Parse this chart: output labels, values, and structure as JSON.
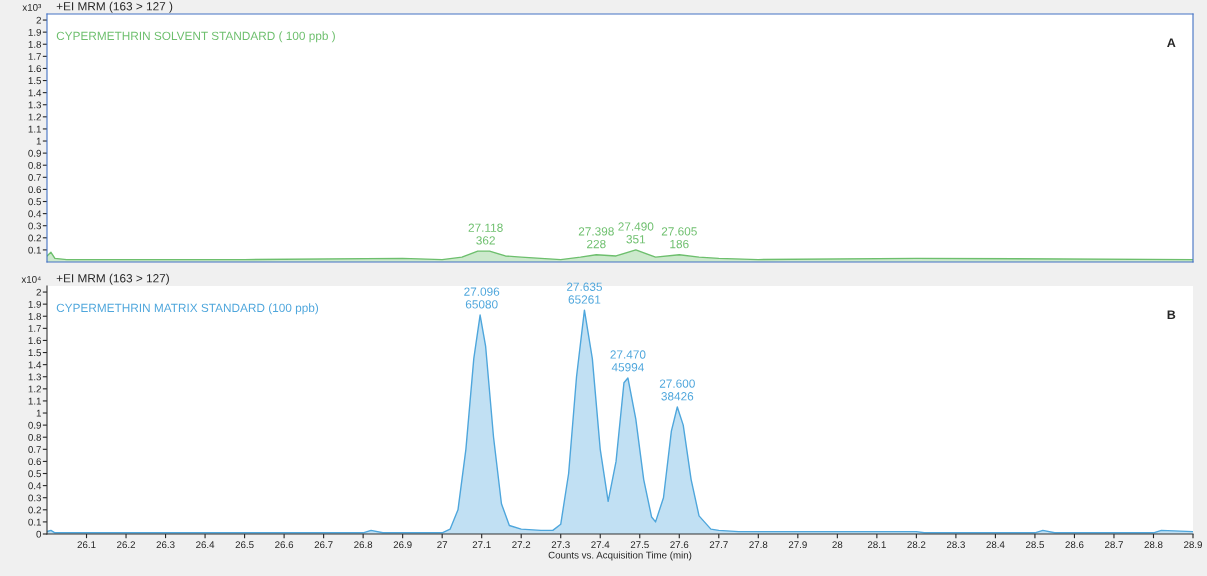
{
  "chart_data": [
    {
      "type": "area",
      "title": "+EI MRM (163 > 127 )",
      "ylabel": "x10³",
      "xlim": [
        26.0,
        28.9
      ],
      "xticks": [
        26.1,
        26.2,
        26.3,
        26.4,
        26.5,
        26.6,
        26.7,
        26.8,
        26.9,
        27,
        27.1,
        27.2,
        27.3,
        27.4,
        27.5,
        27.6,
        27.7,
        27.8,
        27.9,
        28,
        28.1,
        28.2,
        28.3,
        28.4,
        28.5,
        28.6,
        28.7,
        28.8,
        28.9
      ],
      "ylim": [
        0,
        2.05
      ],
      "yticks": [
        0.1,
        0.2,
        0.3,
        0.4,
        0.5,
        0.6,
        0.7,
        0.8,
        0.9,
        1,
        1.1,
        1.2,
        1.3,
        1.4,
        1.5,
        1.6,
        1.7,
        1.8,
        1.9,
        2
      ],
      "tick_labels": "y",
      "grid": false,
      "legend": false,
      "series": [
        {
          "name": "CYPERMETHRIN SOLVENT STANDARD ( 100 ppb )",
          "color": "#6dbf6d",
          "x": [
            26.0,
            26.01,
            26.02,
            26.05,
            26.5,
            26.9,
            27.0,
            27.05,
            27.09,
            27.12,
            27.16,
            27.2,
            27.25,
            27.3,
            27.35,
            27.39,
            27.44,
            27.49,
            27.54,
            27.6,
            27.65,
            27.7,
            27.8,
            28.2,
            28.9
          ],
          "values": [
            0.05,
            0.08,
            0.03,
            0.02,
            0.02,
            0.03,
            0.02,
            0.04,
            0.09,
            0.09,
            0.05,
            0.04,
            0.03,
            0.02,
            0.04,
            0.06,
            0.05,
            0.1,
            0.04,
            0.06,
            0.04,
            0.03,
            0.02,
            0.03,
            0.02
          ]
        }
      ],
      "annotations": [
        {
          "text": "27.118\n362",
          "x": 27.11,
          "y": 0.09
        },
        {
          "text": "27.398\n228",
          "x": 27.39,
          "y": 0.06
        },
        {
          "text": "27.490\n351",
          "x": 27.49,
          "y": 0.1
        },
        {
          "text": "27.605\n186",
          "x": 27.6,
          "y": 0.06
        },
        "A"
      ]
    },
    {
      "type": "area",
      "title": "+EI MRM (163 > 127)",
      "ylabel": "x10⁴",
      "xlabel": "Counts vs. Acquisition Time (min)",
      "xlim": [
        26.0,
        28.9
      ],
      "xticks": [
        26.1,
        26.2,
        26.3,
        26.4,
        26.5,
        26.6,
        26.7,
        26.8,
        26.9,
        27,
        27.1,
        27.2,
        27.3,
        27.4,
        27.5,
        27.6,
        27.7,
        27.8,
        27.9,
        28,
        28.1,
        28.2,
        28.3,
        28.4,
        28.5,
        28.6,
        28.7,
        28.8,
        28.9
      ],
      "ylim": [
        0,
        2.05
      ],
      "yticks": [
        0,
        0.1,
        0.2,
        0.3,
        0.4,
        0.5,
        0.6,
        0.7,
        0.8,
        0.9,
        1,
        1.1,
        1.2,
        1.3,
        1.4,
        1.5,
        1.6,
        1.7,
        1.8,
        1.9,
        2
      ],
      "grid": false,
      "legend": false,
      "series": [
        {
          "name": "CYPERMETHRIN MATRIX STANDARD (100 ppb)",
          "color": "#4ea6dc",
          "x": [
            26.0,
            26.01,
            26.02,
            26.8,
            26.82,
            26.85,
            27.0,
            27.02,
            27.04,
            27.06,
            27.08,
            27.096,
            27.11,
            27.13,
            27.15,
            27.17,
            27.2,
            27.25,
            27.28,
            27.3,
            27.32,
            27.34,
            27.36,
            27.38,
            27.4,
            27.42,
            27.44,
            27.46,
            27.47,
            27.49,
            27.51,
            27.53,
            27.54,
            27.56,
            27.58,
            27.595,
            27.61,
            27.63,
            27.65,
            27.68,
            27.7,
            27.75,
            27.8,
            28.2,
            28.22,
            28.5,
            28.52,
            28.55,
            28.8,
            28.82,
            28.9
          ],
          "values": [
            0.02,
            0.03,
            0.01,
            0.01,
            0.03,
            0.01,
            0.01,
            0.04,
            0.2,
            0.7,
            1.45,
            1.81,
            1.55,
            0.8,
            0.25,
            0.07,
            0.04,
            0.03,
            0.03,
            0.08,
            0.5,
            1.3,
            1.85,
            1.45,
            0.7,
            0.27,
            0.6,
            1.25,
            1.29,
            0.95,
            0.45,
            0.14,
            0.1,
            0.3,
            0.85,
            1.05,
            0.9,
            0.45,
            0.15,
            0.04,
            0.03,
            0.02,
            0.02,
            0.02,
            0.01,
            0.01,
            0.03,
            0.01,
            0.01,
            0.03,
            0.02
          ]
        }
      ],
      "annotations": [
        {
          "text": "27.096\n65080",
          "x": 27.1,
          "y": 1.81
        },
        {
          "text": "27.635\n65261",
          "x": 27.36,
          "y": 1.85
        },
        {
          "text": "27.470\n45994",
          "x": 27.47,
          "y": 1.29
        },
        {
          "text": "27.600\n38426",
          "x": 27.595,
          "y": 1.05
        },
        "B"
      ]
    }
  ]
}
